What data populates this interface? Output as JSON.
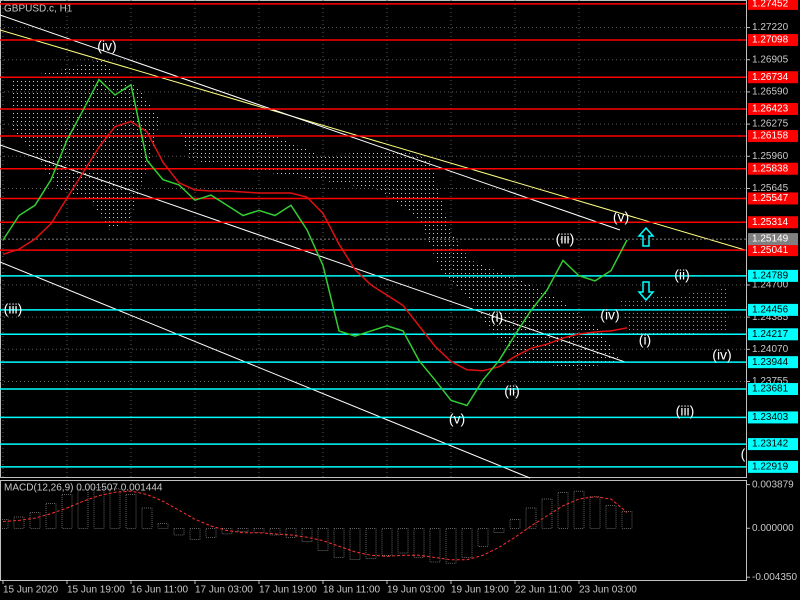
{
  "chart_data": [
    {
      "type": "line",
      "title": "GBPUSD.c, H1",
      "color": "#32cd32",
      "categories": [
        "15 Jun 2020",
        null,
        null,
        null,
        "15 Jun 19:00",
        null,
        null,
        null,
        "16 Jun 11:00",
        null,
        null,
        null,
        "17 Jun 03:00",
        null,
        null,
        null,
        "17 Jun 19:00",
        null,
        null,
        null,
        "18 Jun 11:00",
        null,
        null,
        null,
        "19 Jun 03:00",
        null,
        null,
        null,
        "19 Jun 19:00",
        null,
        null,
        null,
        "22 Jun 11:00",
        null,
        null,
        null,
        "23 Jun 03:00",
        null,
        null,
        null
      ],
      "values": [
        1.2514,
        1.2538,
        1.2548,
        1.2573,
        1.2612,
        1.2641,
        1.2671,
        1.2656,
        1.2666,
        1.2592,
        1.2573,
        1.2568,
        1.2553,
        1.2558,
        1.2548,
        1.2538,
        1.2543,
        1.2538,
        1.2548,
        1.2524,
        1.2489,
        1.2425,
        1.242,
        1.2425,
        1.243,
        1.2425,
        1.2396,
        1.2377,
        1.2357,
        1.2352,
        1.2377,
        1.2396,
        1.2421,
        1.2445,
        1.2465,
        1.2494,
        1.2479,
        1.2474,
        1.2484,
        1.2514
      ],
      "ma": {
        "color": "#e01010",
        "values": [
          1.25,
          1.2505,
          1.2515,
          1.253,
          1.2555,
          1.258,
          1.2605,
          1.2625,
          1.263,
          1.262,
          1.259,
          1.257,
          1.2563,
          1.2562,
          1.2562,
          1.2561,
          1.256,
          1.256,
          1.256,
          1.2556,
          1.254,
          1.251,
          1.2485,
          1.247,
          1.246,
          1.245,
          1.243,
          1.241,
          1.2395,
          1.2387,
          1.2386,
          1.239,
          1.24,
          1.2408,
          1.2412,
          1.2418,
          1.2422,
          1.2424,
          1.2425,
          1.2428
        ]
      },
      "ylim": [
        1.2281,
        1.2749
      ],
      "yticks": [
        {
          "value": 1.2722,
          "label": "1.27220"
        },
        1.26905,
        {
          "value": 1.2659,
          "label": "1.26590"
        },
        1.26275,
        {
          "value": 1.2596,
          "label": "1.25960"
        },
        1.25645,
        {
          "value": 1.247,
          "label": "1.24700"
        },
        1.24385,
        {
          "value": 1.2407,
          "label": "1.24070"
        },
        1.23755
      ],
      "grid": true,
      "resistance_levels": {
        "color": "#ff0000",
        "values": [
          1.27452,
          1.27098,
          1.26734,
          1.26423,
          1.26158,
          1.25838,
          1.25547,
          1.25314,
          1.25041
        ]
      },
      "support_levels": {
        "color": "#00ffff",
        "values": [
          1.24789,
          1.24456,
          1.24217,
          1.23944,
          1.23681,
          1.23403,
          1.23142,
          1.22919
        ]
      },
      "current_price": 1.25149,
      "annotations": [
        "(iv)",
        "(iii)",
        "(v)",
        "(i)",
        "(ii)",
        "(iii)",
        "(iv)",
        "(v)",
        "(ii)",
        "(i)",
        "(iv)",
        "(iii)",
        "("
      ]
    },
    {
      "type": "bar",
      "title": "MACD(12,26,9) 0.001507 0.001444",
      "color": "#c0c0c0",
      "values": [
        0.0008,
        0.001,
        0.0014,
        0.0022,
        0.003,
        0.0034,
        0.0036,
        0.0035,
        0.003,
        0.0018,
        0.0004,
        -0.0006,
        -0.001,
        -0.0008,
        -0.0005,
        -0.0003,
        -0.0004,
        -0.0006,
        -0.0008,
        -0.0012,
        -0.002,
        -0.0026,
        -0.0028,
        -0.0027,
        -0.0024,
        -0.0022,
        -0.0026,
        -0.003,
        -0.0031,
        -0.0026,
        -0.0016,
        -0.0004,
        0.0008,
        0.0018,
        0.0026,
        0.0032,
        0.0033,
        0.0028,
        0.002,
        0.0015
      ],
      "signal": {
        "color": "#ff3030",
        "values": [
          0.0006,
          0.0007,
          0.0009,
          0.0013,
          0.0018,
          0.0024,
          0.0029,
          0.0032,
          0.0033,
          0.003,
          0.0024,
          0.0016,
          0.0008,
          0.0002,
          -0.0002,
          -0.0004,
          -0.0004,
          -0.0005,
          -0.0006,
          -0.0008,
          -0.0011,
          -0.0016,
          -0.0021,
          -0.0024,
          -0.0025,
          -0.0024,
          -0.0024,
          -0.0026,
          -0.0028,
          -0.0028,
          -0.0024,
          -0.0017,
          -0.0008,
          0.0002,
          0.0011,
          0.002,
          0.0026,
          0.0028,
          0.0026,
          0.0014
        ]
      },
      "ylim": [
        -0.0046,
        0.0042
      ],
      "yticks": [
        0.003879,
        {
          "value": 0,
          "label": "0.000000"
        },
        {
          "value": -0.00435,
          "label": "-0.004350"
        }
      ]
    }
  ]
}
